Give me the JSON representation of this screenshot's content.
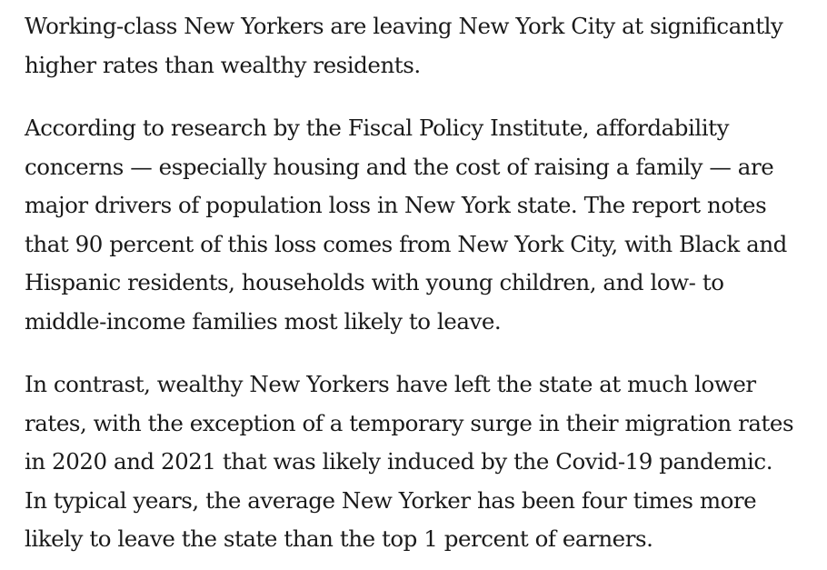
{
  "article": {
    "paragraphs": [
      {
        "lines": [
          "Working-class New Yorkers are leaving New York City at significantly",
          "higher rates than wealthy residents."
        ]
      },
      {
        "lines": [
          "According to research by the Fiscal Policy Institute, affordability",
          "concerns — especially housing and the cost of raising a family — are",
          "major drivers of population loss in New York state. The report notes",
          "that 90 percent of this loss comes from New York City, with Black and",
          "Hispanic residents, households with young children, and low- to",
          "middle-income families most likely to leave."
        ]
      },
      {
        "lines": [
          "In contrast, wealthy New Yorkers have left the state at much lower",
          "rates, with the exception of a temporary surge in their migration rates",
          "in 2020 and 2021 that was likely induced by the Covid-19 pandemic.",
          "In typical years, the average New Yorker has been four times more",
          "likely to leave the state than the top 1 percent of earners."
        ]
      }
    ]
  }
}
